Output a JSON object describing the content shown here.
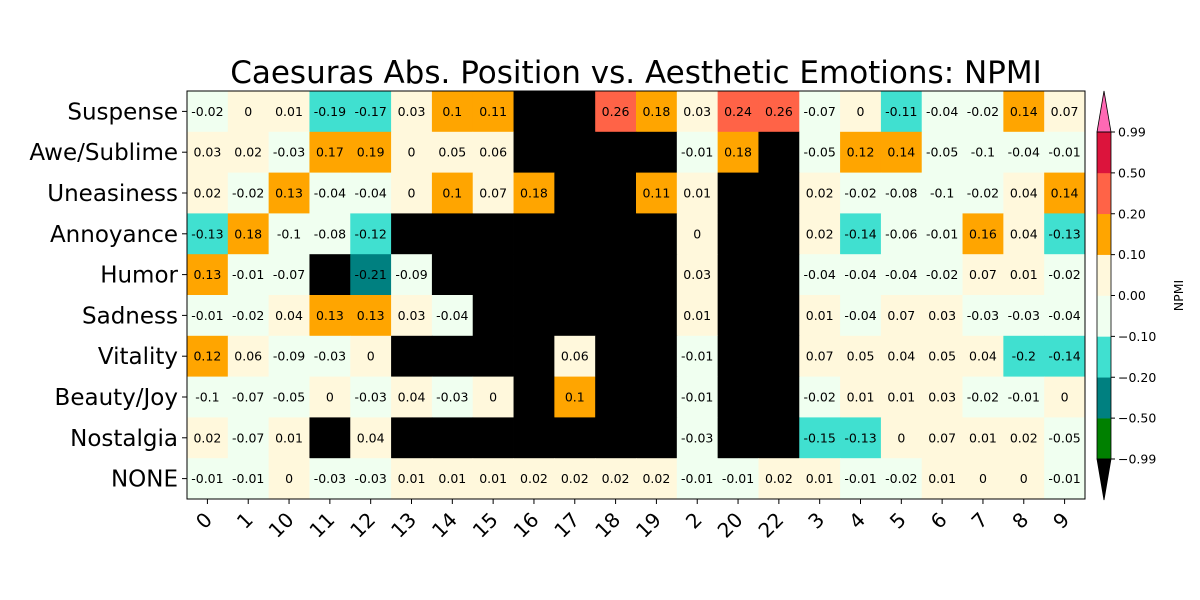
{
  "chart_data": {
    "type": "heatmap",
    "title": "Caesuras Abs. Position vs. Aesthetic Emotions: NPMI",
    "rows": [
      "Suspense",
      "Awe/Sublime",
      "Uneasiness",
      "Annoyance",
      "Humor",
      "Sadness",
      "Vitality",
      "Beauty/Joy",
      "Nostalgia",
      "NONE"
    ],
    "columns": [
      "0",
      "1",
      "10",
      "11",
      "12",
      "13",
      "14",
      "15",
      "16",
      "17",
      "18",
      "19",
      "2",
      "20",
      "22",
      "3",
      "4",
      "5",
      "6",
      "7",
      "8",
      "9"
    ],
    "values": [
      [
        -0.02,
        0.0,
        0.01,
        -0.19,
        -0.17,
        0.03,
        0.1,
        0.11,
        null,
        null,
        0.26,
        0.18,
        0.03,
        0.24,
        0.26,
        -0.07,
        0.0,
        -0.11,
        -0.04,
        -0.02,
        0.14,
        0.07
      ],
      [
        0.03,
        0.02,
        -0.03,
        0.17,
        0.19,
        -0.0,
        0.05,
        0.06,
        null,
        null,
        null,
        null,
        -0.01,
        0.18,
        null,
        -0.05,
        0.12,
        0.14,
        -0.05,
        -0.1,
        -0.04,
        -0.01
      ],
      [
        0.02,
        -0.02,
        0.13,
        -0.04,
        -0.04,
        0.0,
        0.1,
        0.07,
        0.18,
        null,
        null,
        0.11,
        0.01,
        null,
        null,
        0.02,
        -0.02,
        -0.08,
        -0.1,
        -0.02,
        0.04,
        0.14
      ],
      [
        -0.13,
        0.18,
        -0.1,
        -0.08,
        -0.12,
        null,
        null,
        null,
        null,
        null,
        null,
        null,
        -0.0,
        null,
        null,
        0.02,
        -0.14,
        -0.06,
        -0.01,
        0.16,
        0.04,
        -0.13
      ],
      [
        0.13,
        -0.01,
        -0.07,
        null,
        -0.21,
        -0.09,
        null,
        null,
        null,
        null,
        null,
        null,
        0.03,
        null,
        null,
        -0.04,
        -0.04,
        -0.04,
        -0.02,
        0.07,
        0.01,
        -0.02
      ],
      [
        -0.01,
        -0.02,
        0.04,
        0.13,
        0.13,
        0.03,
        -0.04,
        null,
        null,
        null,
        null,
        null,
        0.01,
        null,
        null,
        0.01,
        -0.04,
        0.07,
        0.03,
        -0.03,
        -0.03,
        -0.04
      ],
      [
        0.12,
        0.06,
        -0.09,
        -0.03,
        -0.0,
        null,
        null,
        null,
        null,
        0.06,
        null,
        null,
        -0.01,
        null,
        null,
        0.07,
        0.05,
        0.04,
        0.05,
        0.04,
        -0.2,
        -0.14
      ],
      [
        -0.1,
        -0.07,
        -0.05,
        0.0,
        -0.03,
        0.04,
        -0.03,
        0.0,
        null,
        0.1,
        null,
        null,
        -0.01,
        null,
        null,
        -0.02,
        0.01,
        0.01,
        0.03,
        -0.02,
        -0.01,
        -0.0
      ],
      [
        0.02,
        -0.07,
        0.01,
        null,
        0.04,
        null,
        null,
        null,
        null,
        null,
        null,
        null,
        -0.03,
        null,
        null,
        -0.15,
        -0.13,
        0.0,
        0.07,
        0.01,
        0.02,
        -0.05
      ],
      [
        -0.01,
        -0.01,
        0.0,
        -0.03,
        -0.03,
        0.01,
        0.01,
        0.01,
        0.02,
        0.02,
        0.02,
        0.02,
        -0.01,
        -0.01,
        0.02,
        0.01,
        -0.01,
        -0.02,
        0.01,
        -0.0,
        0.0,
        -0.01
      ]
    ],
    "missing_color": "#000000",
    "colorbar": {
      "label": "NPMI",
      "boundaries": [
        -0.99,
        -0.5,
        -0.2,
        -0.1,
        0.0,
        0.1,
        0.2,
        0.5,
        0.99
      ],
      "tick_labels": [
        "−0.99",
        "−0.50",
        "−0.20",
        "−0.10",
        "0.00",
        "0.10",
        "0.20",
        "0.50",
        "0.99"
      ],
      "colors": [
        "#008000",
        "#008080",
        "#40e0d0",
        "#f0fff0",
        "#fff8dc",
        "#ffa500",
        "#ff6347",
        "#dc143c"
      ],
      "under_color": "#000000",
      "over_color": "#ff69b4"
    }
  }
}
